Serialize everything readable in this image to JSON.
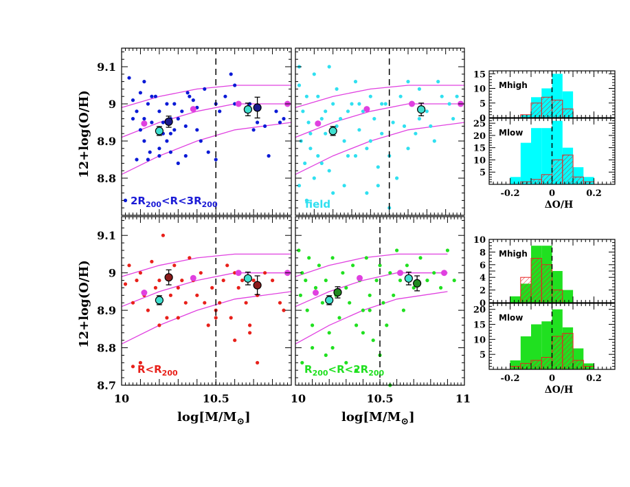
{
  "figure": {
    "ylabel": "12+log(O/H)",
    "xlabel": "log[M/M",
    "xlabel_sub": "⊙",
    "xlabel_end": "]",
    "hist_xlabel": "ΔO/H"
  },
  "chart_data": [
    {
      "type": "scatter",
      "panel": "top-left",
      "label_parts": [
        "2R",
        "200",
        "<R<3R",
        "200"
      ],
      "label_color": "#1a1ad6",
      "point_color": "#0a1ad6",
      "xlim": [
        10,
        10.9
      ],
      "ylim": [
        8.7,
        9.15
      ],
      "yticks": [
        "9.1",
        "9",
        "8.9",
        "8.8"
      ],
      "xticks": [],
      "points": [
        [
          10.04,
          9.07
        ],
        [
          10.06,
          8.96
        ],
        [
          10.06,
          9.01
        ],
        [
          10.08,
          8.98
        ],
        [
          10.1,
          8.93
        ],
        [
          10.1,
          9.03
        ],
        [
          10.12,
          9.06
        ],
        [
          10.12,
          8.96
        ],
        [
          10.14,
          9.0
        ],
        [
          10.14,
          8.85
        ],
        [
          10.16,
          8.95
        ],
        [
          10.16,
          9.02
        ],
        [
          10.18,
          9.02
        ],
        [
          10.2,
          8.88
        ],
        [
          10.2,
          8.98
        ],
        [
          10.22,
          8.95
        ],
        [
          10.22,
          8.92
        ],
        [
          10.24,
          8.9
        ],
        [
          10.24,
          9.0
        ],
        [
          10.26,
          8.96
        ],
        [
          10.26,
          8.92
        ],
        [
          10.28,
          8.93
        ],
        [
          10.3,
          8.96
        ],
        [
          10.32,
          8.98
        ],
        [
          10.34,
          8.94
        ],
        [
          10.35,
          9.03
        ],
        [
          10.36,
          9.02
        ],
        [
          10.38,
          9.01
        ],
        [
          10.4,
          8.99
        ],
        [
          10.42,
          8.9
        ],
        [
          10.44,
          9.04
        ],
        [
          10.46,
          8.87
        ],
        [
          10.5,
          9.0
        ],
        [
          10.52,
          8.98
        ],
        [
          10.55,
          9.02
        ],
        [
          10.58,
          9.08
        ],
        [
          10.6,
          9.05
        ],
        [
          10.62,
          9.0
        ],
        [
          10.66,
          8.98
        ],
        [
          10.68,
          9.0
        ],
        [
          10.72,
          8.95
        ],
        [
          10.76,
          8.94
        ],
        [
          10.78,
          8.86
        ],
        [
          10.82,
          8.98
        ],
        [
          10.84,
          8.95
        ],
        [
          10.86,
          8.96
        ],
        [
          10.08,
          8.85
        ],
        [
          10.12,
          8.9
        ],
        [
          10.3,
          8.84
        ],
        [
          10.2,
          8.86
        ],
        [
          10.4,
          8.93
        ],
        [
          10.28,
          9.0
        ],
        [
          10.02,
          8.74
        ],
        [
          10.5,
          8.85
        ],
        [
          10.6,
          9.0
        ],
        [
          10.7,
          8.93
        ],
        [
          10.15,
          8.87
        ],
        [
          10.34,
          8.86
        ],
        [
          10.26,
          8.87
        ]
      ],
      "mean_points": [
        {
          "x": 10.2,
          "y": 8.927,
          "err": 0.012,
          "color": "#40e0d0"
        },
        {
          "x": 10.25,
          "y": 8.952,
          "err": 0.015,
          "color": "#1a1a8c"
        },
        {
          "x": 10.67,
          "y": 8.985,
          "err": 0.017,
          "color": "#40e0d0"
        },
        {
          "x": 10.72,
          "y": 8.99,
          "err": 0.028,
          "color": "#1a1a8c"
        }
      ]
    },
    {
      "type": "scatter",
      "panel": "top-middle",
      "label_parts": [
        "field"
      ],
      "label_color": "#30e0f0",
      "point_color": "#30e0f0",
      "xlim": [
        10,
        10.9
      ],
      "ylim": [
        8.7,
        9.15
      ],
      "yticks": [],
      "xticks": [],
      "points": [
        [
          10.02,
          9.05
        ],
        [
          10.03,
          8.9
        ],
        [
          10.04,
          8.98
        ],
        [
          10.05,
          8.84
        ],
        [
          10.06,
          9.02
        ],
        [
          10.07,
          8.95
        ],
        [
          10.08,
          8.88
        ],
        [
          10.1,
          9.08
        ],
        [
          10.12,
          9.02
        ],
        [
          10.12,
          8.86
        ],
        [
          10.14,
          8.96
        ],
        [
          10.16,
          8.92
        ],
        [
          10.18,
          8.82
        ],
        [
          10.2,
          9.0
        ],
        [
          10.22,
          9.04
        ],
        [
          10.24,
          8.96
        ],
        [
          10.26,
          8.9
        ],
        [
          10.28,
          8.86
        ],
        [
          10.3,
          9.0
        ],
        [
          10.32,
          9.06
        ],
        [
          10.34,
          8.93
        ],
        [
          10.36,
          8.98
        ],
        [
          10.38,
          8.88
        ],
        [
          10.4,
          9.02
        ],
        [
          10.42,
          8.96
        ],
        [
          10.44,
          8.83
        ],
        [
          10.46,
          8.92
        ],
        [
          10.48,
          9.0
        ],
        [
          10.5,
          8.86
        ],
        [
          10.52,
          8.95
        ],
        [
          10.54,
          8.8
        ],
        [
          10.56,
          9.02
        ],
        [
          10.58,
          8.94
        ],
        [
          10.6,
          8.88
        ],
        [
          10.62,
          9.0
        ],
        [
          10.64,
          8.92
        ],
        [
          10.66,
          9.04
        ],
        [
          10.7,
          8.98
        ],
        [
          10.74,
          8.9
        ],
        [
          10.78,
          9.02
        ],
        [
          10.82,
          9.0
        ],
        [
          10.86,
          9.02
        ],
        [
          10.02,
          8.78
        ],
        [
          10.06,
          8.74
        ],
        [
          10.1,
          8.8
        ],
        [
          10.14,
          8.84
        ],
        [
          10.2,
          8.76
        ],
        [
          10.26,
          8.78
        ],
        [
          10.32,
          8.86
        ],
        [
          10.38,
          8.76
        ],
        [
          10.44,
          8.78
        ],
        [
          10.5,
          8.72
        ],
        [
          10.02,
          9.1
        ],
        [
          10.18,
          9.1
        ],
        [
          10.34,
          9.0
        ],
        [
          10.22,
          8.94
        ],
        [
          10.28,
          8.98
        ],
        [
          10.08,
          8.92
        ],
        [
          10.16,
          8.98
        ],
        [
          10.4,
          8.9
        ],
        [
          10.46,
          9.0
        ],
        [
          10.6,
          9.06
        ],
        [
          10.66,
          8.96
        ],
        [
          10.72,
          8.94
        ],
        [
          10.76,
          9.06
        ],
        [
          10.84,
          8.96
        ]
      ],
      "mean_points": [
        {
          "x": 10.2,
          "y": 8.927,
          "err": 0.012,
          "color": "#40e0d0"
        },
        {
          "x": 10.67,
          "y": 8.985,
          "err": 0.017,
          "color": "#40e0d0"
        }
      ]
    },
    {
      "type": "scatter",
      "panel": "bottom-left",
      "label_parts": [
        "R<R",
        "200"
      ],
      "label_color": "#e8201a",
      "point_color": "#e8201a",
      "xlim": [
        10,
        10.9
      ],
      "ylim": [
        8.7,
        9.15
      ],
      "yticks": [
        "9.1",
        "9",
        "8.9",
        "8.8",
        "8.7"
      ],
      "xticks": [
        "10",
        "10.5"
      ],
      "points": [
        [
          10.02,
          8.97
        ],
        [
          10.04,
          9.02
        ],
        [
          10.06,
          8.92
        ],
        [
          10.08,
          8.98
        ],
        [
          10.1,
          9.0
        ],
        [
          10.12,
          8.94
        ],
        [
          10.14,
          8.9
        ],
        [
          10.16,
          9.03
        ],
        [
          10.18,
          8.96
        ],
        [
          10.2,
          8.98
        ],
        [
          10.22,
          9.1
        ],
        [
          10.24,
          8.88
        ],
        [
          10.26,
          8.94
        ],
        [
          10.28,
          9.02
        ],
        [
          10.3,
          8.96
        ],
        [
          10.32,
          8.98
        ],
        [
          10.34,
          8.92
        ],
        [
          10.36,
          9.04
        ],
        [
          10.38,
          8.98
        ],
        [
          10.4,
          8.94
        ],
        [
          10.42,
          9.0
        ],
        [
          10.44,
          8.92
        ],
        [
          10.46,
          8.86
        ],
        [
          10.48,
          8.96
        ],
        [
          10.5,
          8.88
        ],
        [
          10.52,
          8.92
        ],
        [
          10.54,
          8.98
        ],
        [
          10.56,
          9.02
        ],
        [
          10.58,
          8.88
        ],
        [
          10.6,
          9.0
        ],
        [
          10.62,
          8.96
        ],
        [
          10.64,
          8.98
        ],
        [
          10.66,
          8.92
        ],
        [
          10.68,
          8.86
        ],
        [
          10.7,
          8.98
        ],
        [
          10.72,
          8.94
        ],
        [
          10.76,
          9.0
        ],
        [
          10.8,
          8.98
        ],
        [
          10.84,
          8.92
        ],
        [
          10.86,
          8.9
        ],
        [
          10.1,
          8.76
        ],
        [
          10.06,
          8.75
        ],
        [
          10.2,
          8.86
        ],
        [
          10.3,
          8.88
        ],
        [
          10.5,
          8.9
        ],
        [
          10.72,
          8.76
        ],
        [
          10.6,
          8.82
        ],
        [
          10.68,
          8.84
        ]
      ],
      "mean_points": [
        {
          "x": 10.2,
          "y": 8.927,
          "err": 0.012,
          "color": "#40e0d0"
        },
        {
          "x": 10.25,
          "y": 8.988,
          "err": 0.02,
          "color": "#8b1a1a"
        },
        {
          "x": 10.67,
          "y": 8.985,
          "err": 0.017,
          "color": "#40e0d0"
        },
        {
          "x": 10.72,
          "y": 8.967,
          "err": 0.025,
          "color": "#8b1a1a"
        }
      ]
    },
    {
      "type": "scatter",
      "panel": "bottom-middle",
      "label_parts": [
        "R",
        "200",
        "<R<2R",
        "200"
      ],
      "label_color": "#20e020",
      "point_color": "#20e020",
      "xlim": [
        10,
        11
      ],
      "ylim": [
        8.7,
        9.15
      ],
      "yticks": [],
      "xticks": [
        "10",
        "10.5",
        "11"
      ],
      "points": [
        [
          10.02,
          9.06
        ],
        [
          10.03,
          8.94
        ],
        [
          10.04,
          9.0
        ],
        [
          10.06,
          8.98
        ],
        [
          10.07,
          8.9
        ],
        [
          10.08,
          9.04
        ],
        [
          10.1,
          8.86
        ],
        [
          10.12,
          8.96
        ],
        [
          10.14,
          9.02
        ],
        [
          10.16,
          8.92
        ],
        [
          10.18,
          8.98
        ],
        [
          10.2,
          8.84
        ],
        [
          10.22,
          9.04
        ],
        [
          10.24,
          8.94
        ],
        [
          10.26,
          8.88
        ],
        [
          10.28,
          9.0
        ],
        [
          10.3,
          8.96
        ],
        [
          10.32,
          8.92
        ],
        [
          10.34,
          9.02
        ],
        [
          10.36,
          8.86
        ],
        [
          10.38,
          8.98
        ],
        [
          10.4,
          8.9
        ],
        [
          10.42,
          9.04
        ],
        [
          10.44,
          8.94
        ],
        [
          10.46,
          8.82
        ],
        [
          10.48,
          8.98
        ],
        [
          10.5,
          9.02
        ],
        [
          10.52,
          8.92
        ],
        [
          10.54,
          8.86
        ],
        [
          10.56,
          9.0
        ],
        [
          10.58,
          8.94
        ],
        [
          10.6,
          9.06
        ],
        [
          10.62,
          8.98
        ],
        [
          10.64,
          8.9
        ],
        [
          10.66,
          9.02
        ],
        [
          10.7,
          8.96
        ],
        [
          10.74,
          9.04
        ],
        [
          10.78,
          8.98
        ],
        [
          10.82,
          9.0
        ],
        [
          10.86,
          8.96
        ],
        [
          10.9,
          9.06
        ],
        [
          10.94,
          8.98
        ],
        [
          10.04,
          8.76
        ],
        [
          10.1,
          8.8
        ],
        [
          10.18,
          8.78
        ],
        [
          10.3,
          8.76
        ],
        [
          10.4,
          8.84
        ],
        [
          10.5,
          8.78
        ],
        [
          10.36,
          8.74
        ],
        [
          10.56,
          8.7
        ],
        [
          10.22,
          8.8
        ],
        [
          10.44,
          8.9
        ]
      ],
      "mean_points": [
        {
          "x": 10.2,
          "y": 8.927,
          "err": 0.012,
          "color": "#40e0d0"
        },
        {
          "x": 10.25,
          "y": 8.948,
          "err": 0.015,
          "color": "#208a20"
        },
        {
          "x": 10.67,
          "y": 8.985,
          "err": 0.017,
          "color": "#40e0d0"
        },
        {
          "x": 10.72,
          "y": 8.972,
          "err": 0.02,
          "color": "#208a20"
        }
      ]
    },
    {
      "type": "histogram",
      "panel": "hist-top-1",
      "label": "Mhigh",
      "xlim": [
        -0.3,
        0.3
      ],
      "ylim": [
        0,
        16
      ],
      "yticks": [
        "15",
        "10",
        "5",
        "0"
      ],
      "xticks": [],
      "bin_width": 0.05,
      "bins": [
        -0.15,
        -0.1,
        -0.05,
        0.0,
        0.05
      ],
      "fill_color": "#00ffff",
      "filled_counts": [
        1,
        7,
        10,
        15,
        9
      ],
      "hatched_counts": [
        1,
        5,
        7,
        6,
        3
      ],
      "hatch_color": "#e82020"
    },
    {
      "type": "histogram",
      "panel": "hist-top-2",
      "label": "Mlow",
      "xlim": [
        -0.3,
        0.3
      ],
      "ylim": [
        0,
        27
      ],
      "yticks": [
        "25",
        "20",
        "15",
        "10",
        "5"
      ],
      "xticks": [
        "-0.2",
        "0",
        "0.2"
      ],
      "bin_width": 0.05,
      "bins": [
        -0.2,
        -0.15,
        -0.1,
        -0.05,
        0.0,
        0.05,
        0.1,
        0.15
      ],
      "fill_color": "#00ffff",
      "filled_counts": [
        3,
        17,
        23,
        23,
        26,
        15,
        7,
        3
      ],
      "hatched_counts": [
        0,
        1,
        2,
        4,
        10,
        12,
        3,
        1
      ],
      "hatch_color": "#e82020",
      "xlabel": "ΔO/H"
    },
    {
      "type": "histogram",
      "panel": "hist-bottom-1",
      "label": "Mhigh",
      "xlim": [
        -0.3,
        0.3
      ],
      "ylim": [
        0,
        10
      ],
      "yticks": [
        "10",
        "8",
        "6",
        "4",
        "2",
        "0"
      ],
      "xticks": [],
      "bin_width": 0.05,
      "bins": [
        -0.2,
        -0.15,
        -0.1,
        -0.05,
        0.0,
        0.05
      ],
      "fill_color": "#20e020",
      "filled_counts": [
        1,
        3,
        9,
        9,
        5,
        2
      ],
      "hatched_counts": [
        0,
        4,
        7,
        6,
        2,
        0
      ],
      "hatch_color": "#e82020"
    },
    {
      "type": "histogram",
      "panel": "hist-bottom-2",
      "label": "Mlow",
      "xlim": [
        -0.3,
        0.3
      ],
      "ylim": [
        0,
        22
      ],
      "yticks": [
        "20",
        "15",
        "10",
        "5"
      ],
      "xticks": [
        "-0.2",
        "0",
        "0.2"
      ],
      "bin_width": 0.05,
      "bins": [
        -0.2,
        -0.15,
        -0.1,
        -0.05,
        0.0,
        0.05,
        0.1,
        0.15
      ],
      "fill_color": "#20e020",
      "filled_counts": [
        3,
        11,
        15,
        16,
        20,
        14,
        7,
        2
      ],
      "hatched_counts": [
        1,
        2,
        3,
        4,
        11,
        12,
        3,
        1
      ],
      "hatch_color": "#e82020",
      "xlabel": "ΔO/H"
    }
  ],
  "model_curves": {
    "color": "#e040e0",
    "upper": [
      [
        10,
        8.99
      ],
      [
        10.2,
        9.02
      ],
      [
        10.4,
        9.04
      ],
      [
        10.6,
        9.05
      ],
      [
        10.9,
        9.05
      ]
    ],
    "middle": [
      [
        10,
        8.91
      ],
      [
        10.2,
        8.95
      ],
      [
        10.4,
        8.98
      ],
      [
        10.6,
        9.0
      ],
      [
        10.9,
        9.0
      ]
    ],
    "lower": [
      [
        10,
        8.81
      ],
      [
        10.2,
        8.86
      ],
      [
        10.4,
        8.9
      ],
      [
        10.6,
        8.93
      ],
      [
        10.9,
        8.95
      ]
    ],
    "dots": [
      [
        10.12,
        8.947
      ],
      [
        10.38,
        8.986
      ],
      [
        10.62,
        9.0
      ],
      [
        10.88,
        9.0
      ]
    ]
  }
}
